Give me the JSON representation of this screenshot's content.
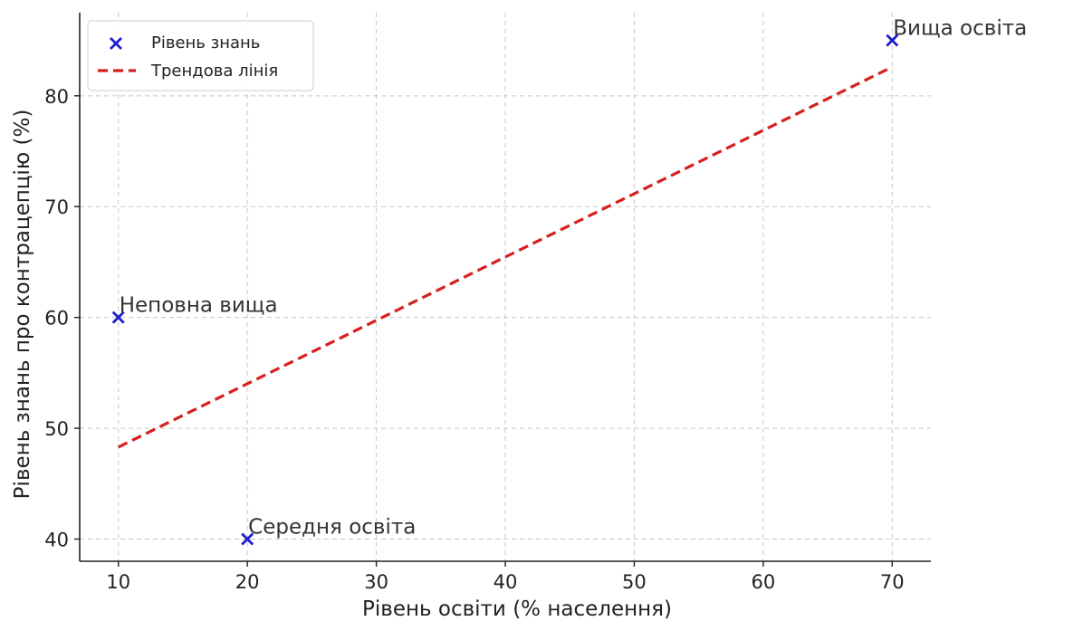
{
  "chart_data": {
    "type": "scatter",
    "title": "",
    "xlabel": "Рівень освіти (% населення)",
    "ylabel": "Рівень знань про контрацепцію (%)",
    "xlim": [
      7,
      73
    ],
    "ylim": [
      38,
      87.5
    ],
    "xticks": [
      10,
      20,
      30,
      40,
      50,
      60,
      70
    ],
    "yticks": [
      40,
      50,
      60,
      70,
      80
    ],
    "grid": true,
    "legend_position": "top-left",
    "series": [
      {
        "name": "Рівень знань",
        "kind": "scatter",
        "marker": "x",
        "color": "#1f1fcf",
        "points": [
          {
            "x": 10,
            "y": 60,
            "label": "Неповна вища"
          },
          {
            "x": 20,
            "y": 40,
            "label": "Середня освіта"
          },
          {
            "x": 70,
            "y": 85,
            "label": "Вища освіта"
          }
        ]
      },
      {
        "name": "Трендова лінія",
        "kind": "line",
        "style": "dashed",
        "color": "#d62020",
        "points": [
          {
            "x": 10,
            "y": 48.3
          },
          {
            "x": 70,
            "y": 82.6
          }
        ]
      }
    ]
  }
}
